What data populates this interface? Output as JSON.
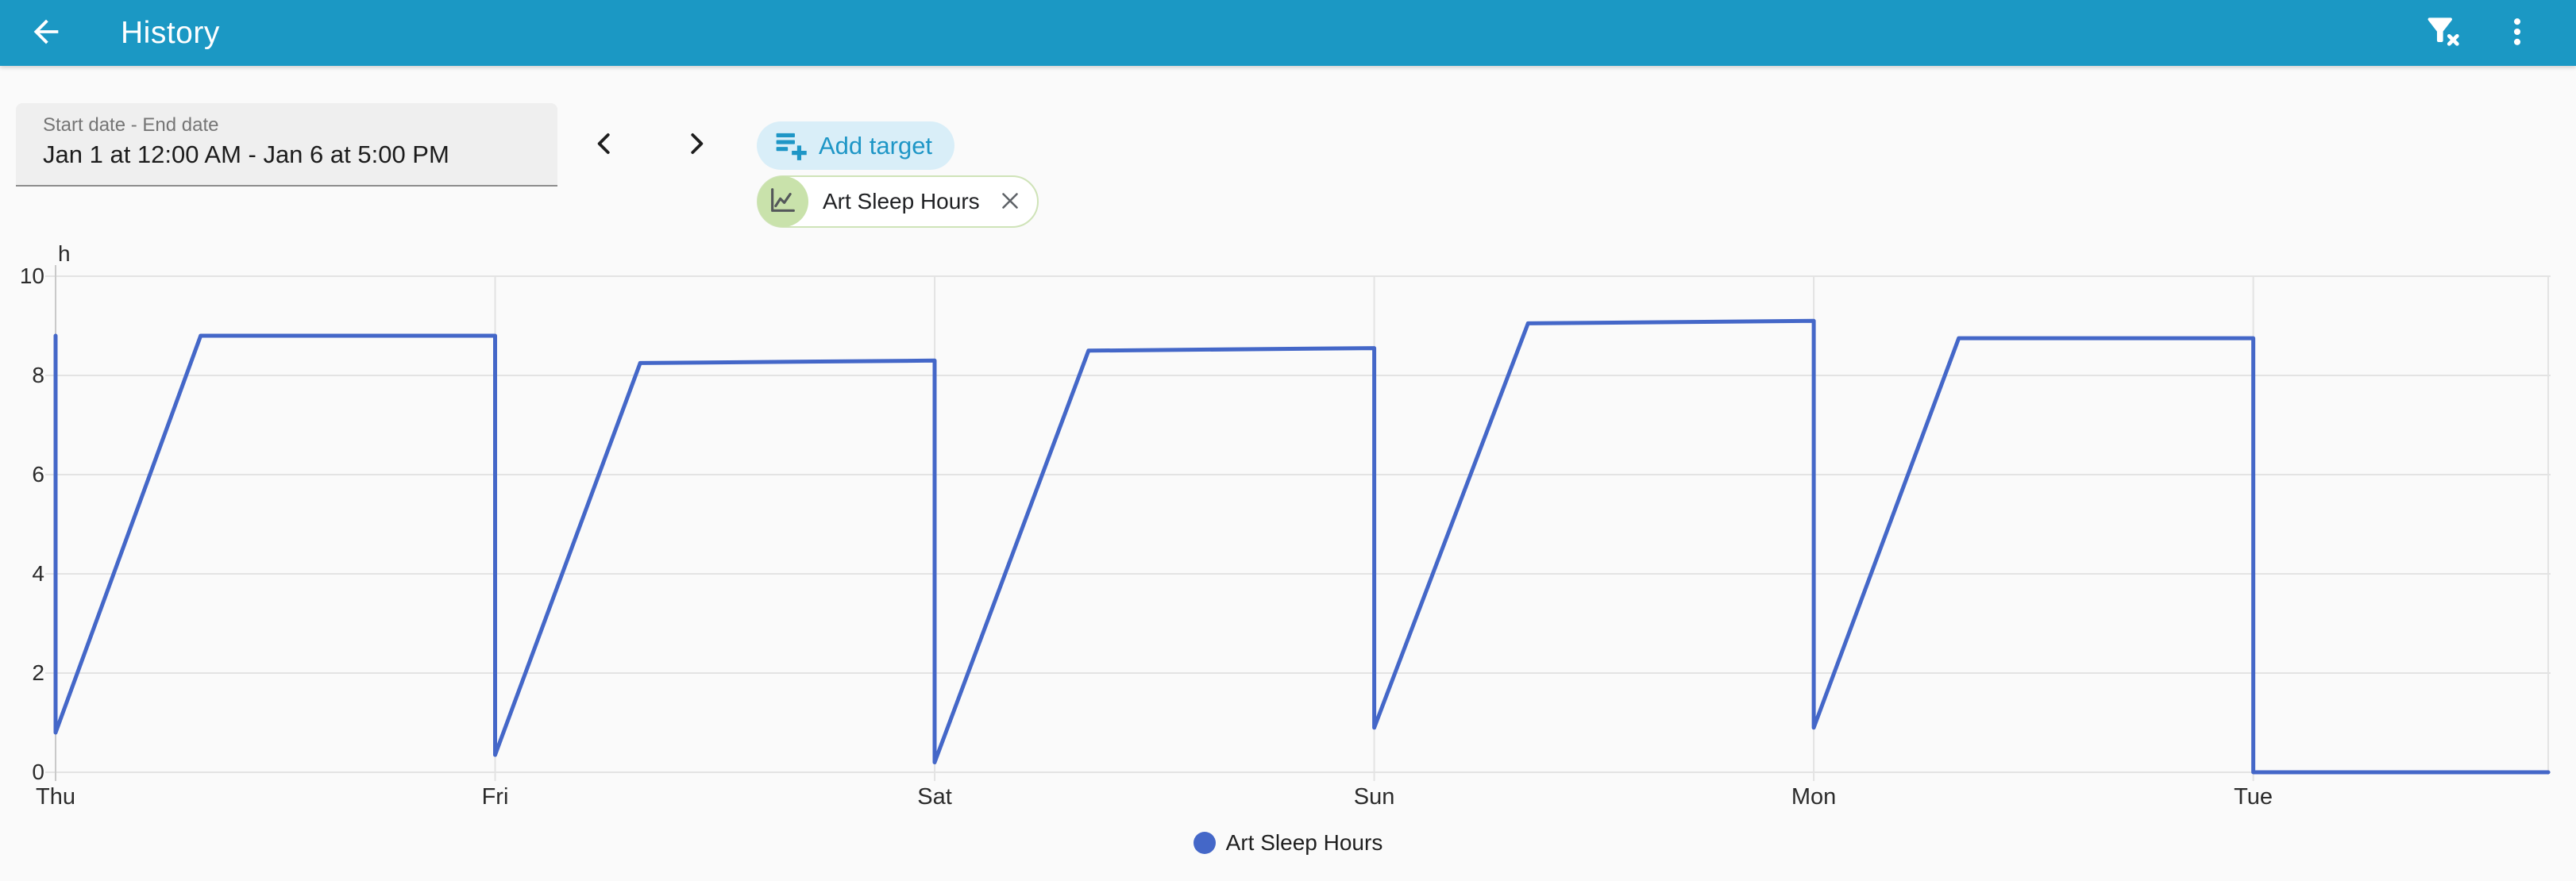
{
  "app_bar": {
    "title": "History",
    "color": "#1b98c4",
    "back_icon": "arrow-back",
    "filter_icon": "filter-remove",
    "menu_icon": "more-vertical"
  },
  "controls": {
    "date_field": {
      "label": "Start date - End date",
      "value": "Jan 1 at 12:00 AM - Jan 6 at 5:00 PM"
    },
    "prev_icon": "chevron-left",
    "next_icon": "chevron-right",
    "add_target": {
      "label": "Add target",
      "icon": "playlist-add",
      "bg_color": "#d9eef8",
      "text_color": "#1e96c6"
    },
    "target_chip": {
      "label": "Art Sleep Hours",
      "avatar_icon": "line-chart",
      "avatar_color": "#c9e2ab",
      "border_color": "#cfe3b8",
      "close_icon": "close"
    }
  },
  "chart_data": {
    "type": "line",
    "title": "",
    "unit_label": "h",
    "ylabel": "h",
    "ylim": [
      0,
      10
    ],
    "yticks": [
      0,
      2,
      4,
      6,
      8,
      10
    ],
    "x_categories": [
      "Thu",
      "Fri",
      "Sat",
      "Sun",
      "Mon",
      "Tue"
    ],
    "x_max_days": 5.671,
    "grid": true,
    "grid_color": "#e3e3e3",
    "axis_color": "#c9c9c9",
    "series": [
      {
        "name": "Art Sleep Hours",
        "color": "#4467c8",
        "points_days_hours": [
          [
            0,
            8.8
          ],
          [
            0,
            0.8
          ],
          [
            0.33,
            8.8
          ],
          [
            1,
            8.8
          ],
          [
            1,
            0.35
          ],
          [
            1.33,
            8.25
          ],
          [
            2,
            8.3
          ],
          [
            2,
            0.2
          ],
          [
            2.35,
            8.5
          ],
          [
            3,
            8.55
          ],
          [
            3,
            0.9
          ],
          [
            3.35,
            9.05
          ],
          [
            4,
            9.1
          ],
          [
            4,
            0.9
          ],
          [
            4.33,
            8.75
          ],
          [
            5,
            8.75
          ],
          [
            5,
            0
          ],
          [
            5.671,
            0
          ]
        ]
      }
    ],
    "legend": [
      {
        "label": "Art Sleep Hours",
        "color": "#4467c8"
      }
    ],
    "legend_position": "bottom"
  }
}
